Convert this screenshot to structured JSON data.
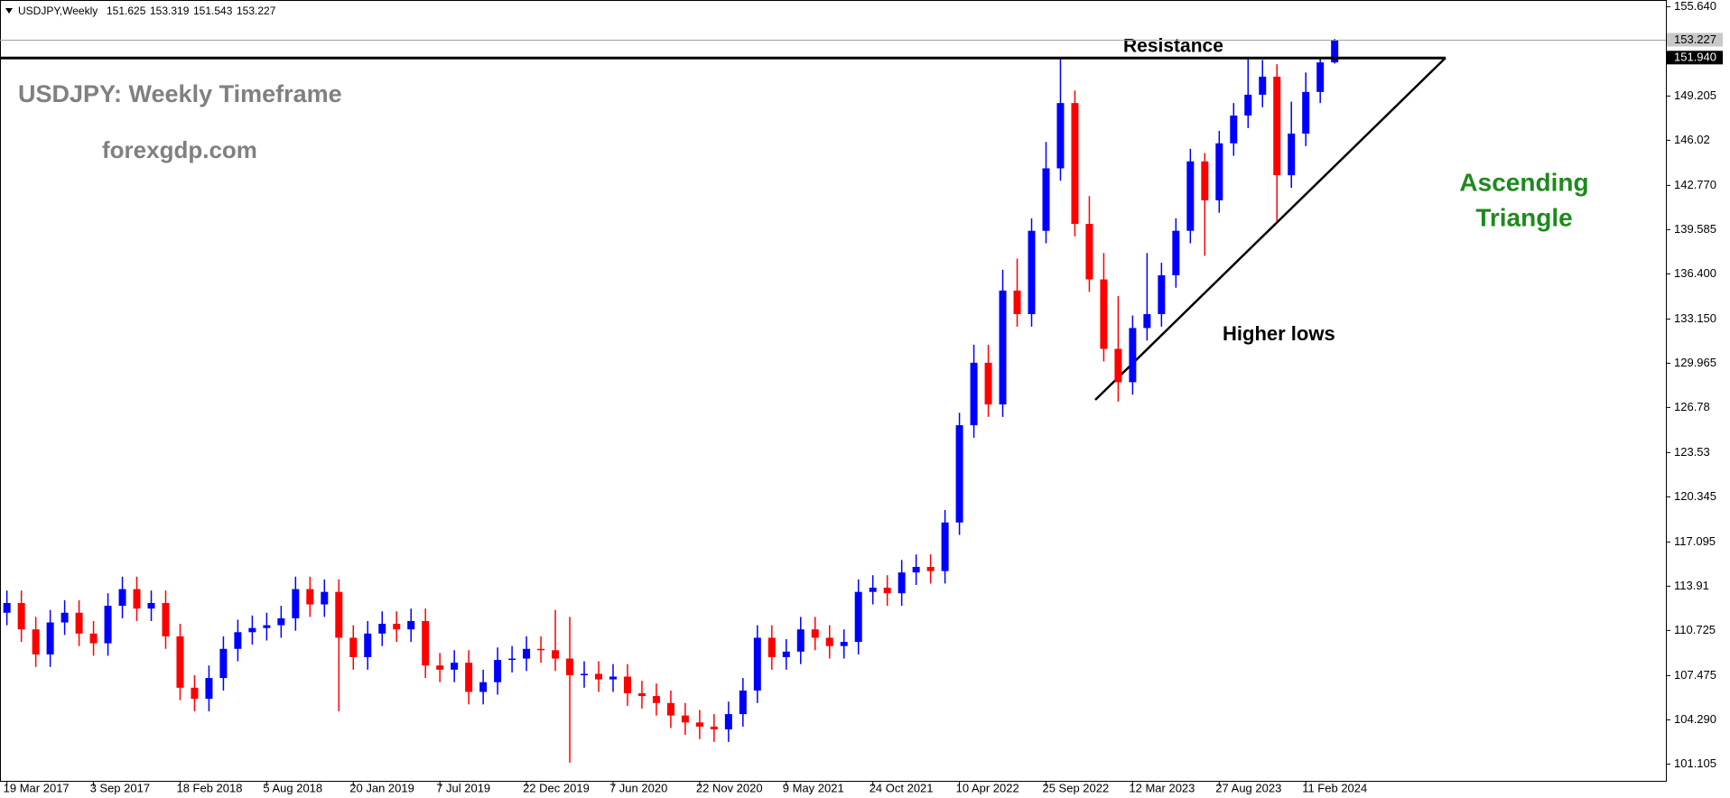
{
  "chart_data": {
    "type": "candlestick",
    "symbol": "USDJPY,Weekly",
    "watermark": "USDJPY: Weekly Timeframe",
    "site": "forexgdp.com",
    "resistance_text": "Resistance",
    "higher_lows_text": "Higher lows",
    "pattern_line1": "Ascending",
    "pattern_line2": "Triangle",
    "up_color": "#0000ff",
    "down_color": "#ff0000",
    "categories": [
      "19 Mar 2017",
      null,
      null,
      null,
      null,
      null,
      "3 Sep 2017",
      null,
      null,
      null,
      null,
      null,
      "18 Feb 2018",
      null,
      null,
      null,
      null,
      null,
      "5 Aug 2018",
      null,
      null,
      null,
      null,
      null,
      "20 Jan 2019",
      null,
      null,
      null,
      null,
      null,
      "7 Jul 2019",
      null,
      null,
      null,
      null,
      null,
      "22 Dec 2019",
      null,
      null,
      null,
      null,
      null,
      "7 Jun 2020",
      null,
      null,
      null,
      null,
      null,
      "22 Nov 2020",
      null,
      null,
      null,
      null,
      null,
      "9 May 2021",
      null,
      null,
      null,
      null,
      null,
      "24 Oct 2021",
      null,
      null,
      null,
      null,
      null,
      "10 Apr 2022",
      null,
      null,
      null,
      null,
      null,
      "25 Sep 2022",
      null,
      null,
      null,
      null,
      null,
      "12 Mar 2023",
      null,
      null,
      null,
      null,
      null,
      "27 Aug 2023",
      null,
      null,
      null,
      null,
      null,
      "11 Feb 2024",
      null,
      null
    ],
    "open": [
      112.0,
      112.7,
      110.8,
      109.0,
      111.3,
      112.0,
      110.5,
      109.8,
      112.5,
      113.7,
      112.3,
      112.7,
      110.3,
      106.6,
      105.8,
      107.3,
      109.4,
      110.6,
      110.9,
      111.1,
      111.6,
      113.7,
      112.6,
      113.5,
      110.2,
      108.8,
      110.5,
      111.2,
      110.8,
      111.4,
      108.2,
      107.9,
      108.4,
      106.3,
      107.0,
      108.6,
      108.7,
      109.4,
      109.3,
      108.7,
      107.5,
      107.6,
      107.2,
      107.4,
      106.2,
      106.0,
      105.5,
      104.6,
      104.1,
      103.8,
      103.6,
      104.7,
      106.4,
      110.2,
      108.8,
      109.2,
      110.8,
      110.2,
      109.6,
      109.9,
      113.5,
      113.8,
      113.4,
      114.9,
      115.3,
      115.0,
      118.5,
      125.5,
      130.0,
      127.0,
      135.2,
      133.5,
      139.5,
      144.0,
      148.7,
      140.0,
      136.0,
      131.0,
      128.6,
      132.5,
      133.5,
      136.3,
      139.5,
      144.5,
      141.7,
      145.8,
      147.8,
      149.3,
      150.6,
      143.5,
      146.5,
      149.5,
      151.625
    ],
    "high": [
      113.6,
      113.6,
      111.7,
      112.2,
      112.9,
      112.9,
      111.4,
      113.4,
      114.6,
      114.6,
      113.6,
      113.6,
      111.2,
      107.5,
      108.2,
      110.3,
      111.5,
      111.8,
      112.0,
      112.5,
      114.6,
      114.6,
      114.4,
      114.4,
      111.1,
      111.4,
      112.1,
      112.1,
      112.3,
      112.3,
      109.1,
      109.3,
      109.3,
      107.9,
      109.5,
      109.6,
      110.3,
      110.3,
      112.2,
      111.7,
      108.5,
      108.5,
      108.3,
      108.3,
      107.1,
      106.9,
      106.4,
      105.5,
      105.0,
      104.7,
      105.6,
      107.3,
      111.1,
      111.1,
      110.1,
      111.7,
      111.7,
      111.1,
      110.8,
      114.4,
      114.7,
      114.7,
      115.8,
      116.2,
      116.2,
      119.4,
      126.4,
      131.3,
      131.3,
      136.7,
      137.5,
      140.4,
      145.9,
      151.94,
      149.6,
      142.0,
      137.9,
      134.8,
      133.4,
      137.9,
      137.2,
      140.4,
      145.4,
      145.1,
      146.7,
      148.7,
      151.9,
      151.8,
      151.5,
      148.8,
      150.9,
      151.9,
      153.319
    ],
    "low": [
      111.1,
      109.9,
      108.1,
      108.1,
      110.4,
      109.6,
      108.9,
      108.9,
      111.6,
      111.4,
      111.4,
      109.4,
      105.7,
      104.9,
      104.9,
      106.4,
      108.5,
      109.7,
      110.0,
      110.2,
      110.7,
      111.7,
      111.7,
      104.9,
      107.9,
      107.9,
      109.6,
      109.9,
      109.9,
      107.3,
      107.0,
      107.0,
      105.4,
      105.4,
      106.1,
      107.7,
      107.8,
      108.4,
      107.8,
      101.2,
      106.6,
      106.3,
      106.3,
      105.3,
      105.1,
      104.6,
      103.7,
      103.2,
      102.9,
      102.7,
      102.7,
      103.8,
      105.5,
      107.9,
      107.9,
      108.3,
      109.3,
      108.7,
      108.7,
      109.0,
      112.6,
      112.5,
      112.5,
      114.0,
      114.1,
      114.1,
      117.6,
      124.6,
      126.1,
      126.1,
      132.6,
      132.6,
      138.6,
      143.1,
      139.1,
      135.1,
      130.1,
      127.2,
      127.7,
      131.6,
      132.6,
      135.4,
      138.6,
      137.7,
      140.8,
      144.9,
      146.9,
      148.4,
      140.2,
      142.6,
      145.6,
      148.7,
      151.543
    ],
    "close": [
      112.7,
      110.8,
      109.0,
      111.3,
      112.0,
      110.5,
      109.8,
      112.5,
      113.7,
      112.3,
      112.7,
      110.3,
      106.6,
      105.8,
      107.3,
      109.4,
      110.6,
      110.9,
      111.1,
      111.6,
      113.7,
      112.6,
      113.5,
      110.2,
      108.8,
      110.5,
      111.2,
      110.8,
      111.4,
      108.2,
      107.9,
      108.4,
      106.3,
      107.0,
      108.6,
      108.7,
      109.4,
      109.3,
      108.7,
      107.5,
      107.6,
      107.2,
      107.4,
      106.2,
      106.0,
      105.5,
      104.6,
      104.1,
      103.8,
      103.6,
      104.7,
      106.4,
      110.2,
      108.8,
      109.2,
      110.8,
      110.2,
      109.6,
      109.9,
      113.5,
      113.8,
      113.4,
      114.9,
      115.3,
      115.0,
      118.5,
      125.5,
      130.0,
      127.0,
      135.2,
      133.5,
      139.5,
      144.0,
      148.7,
      140.0,
      136.0,
      131.0,
      128.6,
      132.5,
      133.5,
      136.3,
      139.5,
      144.5,
      141.7,
      145.8,
      147.8,
      149.3,
      150.6,
      143.5,
      146.5,
      149.5,
      151.625,
      153.227
    ],
    "resistance": {
      "value": 151.94,
      "label": "151.940"
    },
    "ylim": [
      99.83,
      156.12
    ],
    "yticks": [
      101.105,
      {
        "value": 104.29,
        "label": "104.290"
      },
      107.475,
      110.725,
      113.91,
      117.095,
      120.345,
      123.53,
      126.78,
      129.965,
      {
        "value": 133.15,
        "label": "133.150"
      },
      {
        "value": 136.4,
        "label": "136.400"
      },
      139.585,
      {
        "value": 142.77,
        "label": "142.770"
      },
      146.02,
      149.205,
      {
        "value": 155.64,
        "label": "155.640"
      }
    ]
  }
}
